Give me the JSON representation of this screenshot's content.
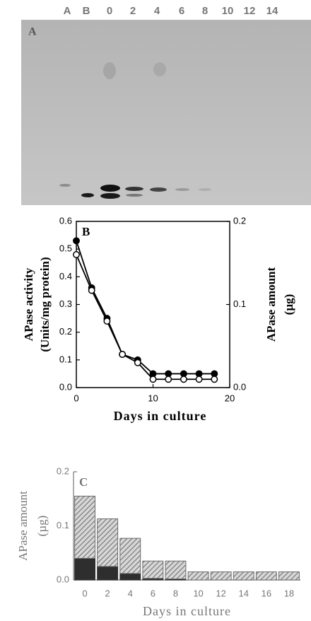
{
  "gel": {
    "panel_label": "A",
    "lanes": [
      "A",
      "B",
      "0",
      "2",
      "4",
      "6",
      "8",
      "10",
      "12",
      "14"
    ]
  },
  "chart_data": [
    {
      "type": "line",
      "panel_label": "B",
      "x": [
        0,
        2,
        4,
        6,
        8,
        10,
        12,
        14,
        16,
        18
      ],
      "xlim": [
        0,
        20
      ],
      "xticks": [
        0,
        10,
        20
      ],
      "ylim": [
        0,
        0.6
      ],
      "yticks": [
        {
          "value": 0,
          "label": "0.0"
        },
        0.1,
        0.2,
        0.3,
        0.4,
        0.5,
        0.6
      ],
      "y2lim": [
        0,
        0.2
      ],
      "y2ticks": [
        {
          "value": 0,
          "label": "0.0"
        },
        0.1,
        0.2
      ],
      "ylabel": [
        "APase activity",
        "(Units/mg protein)"
      ],
      "y2label": [
        "APase amount",
        "(µg)"
      ],
      "xlabel": "Days in culture",
      "series": [
        {
          "color": "#000000",
          "marker": "filled",
          "values": [
            0.53,
            0.36,
            0.25,
            0.12,
            0.1,
            0.05,
            0.05,
            0.05,
            0.05,
            0.05
          ]
        },
        {
          "color": "#000000",
          "marker": "open",
          "axis": "y2",
          "values": [
            0.16,
            0.117,
            0.08,
            0.04,
            0.03,
            0.01,
            0.01,
            0.01,
            0.01,
            0.01
          ]
        }
      ]
    },
    {
      "type": "bar",
      "panel_label": "C",
      "categories": [
        "0",
        "2",
        "4",
        "6",
        "8",
        "10",
        "12",
        "14",
        "16",
        "18"
      ],
      "ylim": [
        0,
        0.2
      ],
      "yticks": [
        {
          "value": 0,
          "label": "0.0"
        },
        0.1,
        0.2
      ],
      "ylabel": [
        "APase amount",
        "(µg)"
      ],
      "xlabel": "Days in culture",
      "stacked": true,
      "series": [
        {
          "color": "#2e2e2e",
          "hatch": false,
          "values": [
            0.04,
            0.025,
            0.012,
            0.003,
            0.002,
            0,
            0,
            0,
            0,
            0
          ]
        },
        {
          "color": "#6a6a6a",
          "hatch": true,
          "values": [
            0.115,
            0.088,
            0.065,
            0.032,
            0.033,
            0.015,
            0.015,
            0.015,
            0.015,
            0.015
          ]
        }
      ]
    }
  ]
}
